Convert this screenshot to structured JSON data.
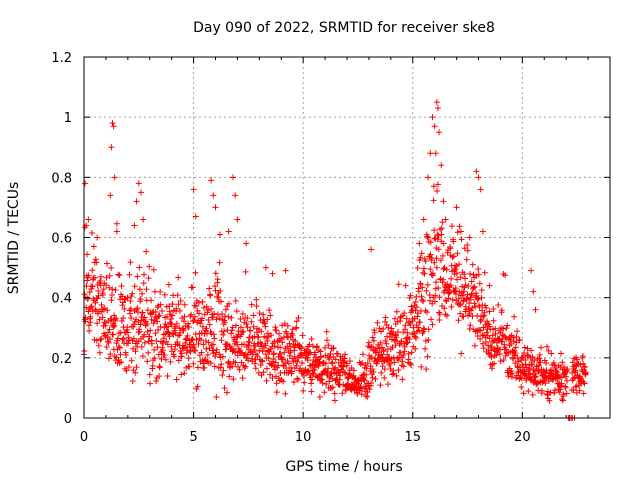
{
  "chart_data": {
    "type": "scatter",
    "title": "Day 090 of 2022, SRMTID for receiver ske8",
    "xlabel": "GPS time / hours",
    "ylabel": "SRMTID / TECUs",
    "xlim": [
      0,
      24
    ],
    "ylim": [
      0,
      1.2
    ],
    "xticks": [
      0,
      5,
      10,
      15,
      20
    ],
    "yticks": [
      0,
      0.2,
      0.4,
      0.6,
      0.8,
      1.0,
      1.2
    ],
    "xtick_labels": [
      "0",
      "5",
      "10",
      "15",
      "20"
    ],
    "ytick_labels": [
      "0",
      "0.2",
      "0.4",
      "0.6",
      "0.8",
      "1",
      "1.2"
    ],
    "grid": true,
    "marker": "+",
    "color": "#ff0000",
    "profile": [
      [
        0.0,
        0.38,
        0.16
      ],
      [
        0.5,
        0.4,
        0.14
      ],
      [
        1.0,
        0.32,
        0.12
      ],
      [
        1.5,
        0.3,
        0.12
      ],
      [
        2.0,
        0.3,
        0.12
      ],
      [
        2.5,
        0.32,
        0.13
      ],
      [
        3.0,
        0.28,
        0.11
      ],
      [
        3.5,
        0.27,
        0.1
      ],
      [
        4.0,
        0.27,
        0.1
      ],
      [
        4.5,
        0.28,
        0.1
      ],
      [
        5.0,
        0.27,
        0.1
      ],
      [
        5.5,
        0.28,
        0.11
      ],
      [
        6.0,
        0.3,
        0.13
      ],
      [
        6.5,
        0.26,
        0.11
      ],
      [
        7.0,
        0.24,
        0.09
      ],
      [
        7.5,
        0.23,
        0.08
      ],
      [
        8.0,
        0.24,
        0.08
      ],
      [
        8.5,
        0.22,
        0.08
      ],
      [
        9.0,
        0.2,
        0.08
      ],
      [
        9.5,
        0.2,
        0.08
      ],
      [
        10.0,
        0.19,
        0.07
      ],
      [
        10.5,
        0.18,
        0.06
      ],
      [
        11.0,
        0.17,
        0.06
      ],
      [
        11.5,
        0.16,
        0.06
      ],
      [
        12.0,
        0.15,
        0.05
      ],
      [
        12.5,
        0.11,
        0.03
      ],
      [
        13.0,
        0.17,
        0.07
      ],
      [
        13.5,
        0.22,
        0.07
      ],
      [
        14.0,
        0.22,
        0.07
      ],
      [
        14.5,
        0.24,
        0.08
      ],
      [
        15.0,
        0.3,
        0.09
      ],
      [
        15.5,
        0.4,
        0.15
      ],
      [
        16.0,
        0.52,
        0.2
      ],
      [
        16.5,
        0.45,
        0.13
      ],
      [
        17.0,
        0.45,
        0.12
      ],
      [
        17.5,
        0.4,
        0.11
      ],
      [
        18.0,
        0.36,
        0.12
      ],
      [
        18.5,
        0.26,
        0.07
      ],
      [
        19.0,
        0.27,
        0.08
      ],
      [
        19.5,
        0.22,
        0.07
      ],
      [
        20.0,
        0.17,
        0.06
      ],
      [
        20.5,
        0.16,
        0.06
      ],
      [
        21.0,
        0.15,
        0.06
      ],
      [
        21.5,
        0.13,
        0.05
      ],
      [
        22.0,
        0.13,
        0.05
      ],
      [
        22.5,
        0.14,
        0.05
      ],
      [
        22.9,
        0.16,
        0.05
      ]
    ],
    "gaps": [
      [
        22.05,
        22.25
      ]
    ],
    "spikes": [
      [
        0.05,
        0.78
      ],
      [
        0.1,
        0.64
      ],
      [
        0.2,
        0.66
      ],
      [
        0.6,
        0.6
      ],
      [
        1.2,
        0.74
      ],
      [
        1.25,
        0.9
      ],
      [
        1.3,
        0.98
      ],
      [
        1.35,
        0.97
      ],
      [
        1.4,
        0.8
      ],
      [
        1.5,
        0.62
      ],
      [
        2.4,
        0.72
      ],
      [
        2.5,
        0.78
      ],
      [
        2.6,
        0.75
      ],
      [
        2.7,
        0.66
      ],
      [
        2.3,
        0.64
      ],
      [
        5.0,
        0.76
      ],
      [
        5.1,
        0.67
      ],
      [
        5.8,
        0.79
      ],
      [
        5.9,
        0.74
      ],
      [
        6.0,
        0.7
      ],
      [
        6.2,
        0.61
      ],
      [
        6.8,
        0.8
      ],
      [
        6.9,
        0.74
      ],
      [
        7.0,
        0.66
      ],
      [
        6.6,
        0.62
      ],
      [
        7.4,
        0.58
      ],
      [
        8.3,
        0.5
      ],
      [
        8.6,
        0.48
      ],
      [
        9.2,
        0.49
      ],
      [
        13.1,
        0.56
      ],
      [
        15.3,
        0.58
      ],
      [
        15.5,
        0.66
      ],
      [
        15.7,
        0.8
      ],
      [
        15.8,
        0.88
      ],
      [
        15.9,
        1.0
      ],
      [
        16.0,
        0.97
      ],
      [
        16.05,
        0.88
      ],
      [
        16.1,
        1.05
      ],
      [
        16.15,
        1.03
      ],
      [
        16.2,
        0.95
      ],
      [
        16.3,
        0.84
      ],
      [
        16.4,
        0.72
      ],
      [
        16.5,
        0.66
      ],
      [
        17.0,
        0.7
      ],
      [
        17.2,
        0.62
      ],
      [
        17.6,
        0.6
      ],
      [
        17.9,
        0.82
      ],
      [
        18.0,
        0.8
      ],
      [
        18.1,
        0.76
      ],
      [
        18.2,
        0.62
      ],
      [
        18.5,
        0.44
      ],
      [
        20.4,
        0.49
      ],
      [
        20.5,
        0.42
      ],
      [
        20.6,
        0.36
      ]
    ]
  }
}
